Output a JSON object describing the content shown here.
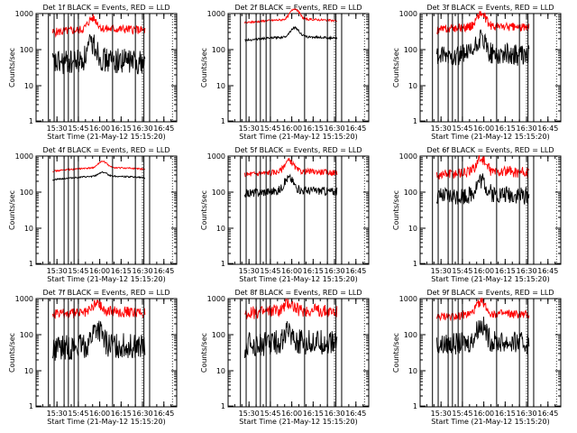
{
  "chart_data": [
    {
      "type": "line",
      "title": "Det 1f BLACK = Events, RED = LLD",
      "xlabel": "Start Time (21-May-12 15:15:20)",
      "ylabel": "Counts/sec",
      "yscale": "log",
      "ylim": [
        1,
        1000
      ],
      "y_ticks": [
        "1",
        "10",
        "100",
        "1000"
      ],
      "x_ticks": [
        "15:30",
        "15:45",
        "16:00",
        "16:15",
        "16:30",
        "16:45"
      ],
      "x_range": [
        "15:15:20",
        "16:54"
      ],
      "grid": false,
      "series": [
        {
          "color": "#ff0000",
          "level": 300,
          "bump_at": "15:55",
          "bump": 2.0,
          "noise": 0.12
        },
        {
          "color": "#000000",
          "level": 40,
          "bump_at": "15:55",
          "bump": 3.0,
          "noise": 0.35
        }
      ],
      "marker_times": [
        "15:24",
        "15:28",
        "15:35",
        "15:38",
        "15:42",
        "15:45",
        "16:09",
        "16:25",
        "16:31",
        "16:35"
      ],
      "dotted_times": [
        "16:30",
        "16:51"
      ]
    },
    {
      "type": "line",
      "title": "Det 2f BLACK = Events, RED = LLD",
      "xlabel": "Start Time (21-May-12 15:15:20)",
      "ylabel": "Counts/sec",
      "yscale": "log",
      "ylim": [
        1,
        1000
      ],
      "y_ticks": [
        "1",
        "10",
        "100",
        "1000"
      ],
      "x_ticks": [
        "15:30",
        "15:45",
        "16:00",
        "16:15",
        "16:30",
        "16:45"
      ],
      "x_range": [
        "15:15:20",
        "16:54"
      ],
      "grid": false,
      "series": [
        {
          "color": "#ff0000",
          "level": 550,
          "bump_at": "16:02",
          "bump": 2.0,
          "noise": 0.03
        },
        {
          "color": "#000000",
          "level": 180,
          "bump_at": "16:02",
          "bump": 1.8,
          "noise": 0.03
        }
      ],
      "marker_times": [
        "15:24",
        "15:28",
        "15:35",
        "15:38",
        "15:42",
        "15:45",
        "16:09",
        "16:25",
        "16:31",
        "16:35"
      ],
      "dotted_times": [
        "16:30",
        "16:51"
      ]
    },
    {
      "type": "line",
      "title": "Det 3f BLACK = Events, RED = LLD",
      "xlabel": "Start Time (21-May-12 15:15:20)",
      "ylabel": "Counts/sec",
      "yscale": "log",
      "ylim": [
        1,
        1000
      ],
      "y_ticks": [
        "1",
        "10",
        "100",
        "1000"
      ],
      "x_ticks": [
        "15:30",
        "15:45",
        "16:00",
        "16:15",
        "16:30",
        "16:45"
      ],
      "x_range": [
        "15:15:20",
        "16:54"
      ],
      "grid": false,
      "series": [
        {
          "color": "#ff0000",
          "level": 350,
          "bump_at": "15:58",
          "bump": 2.3,
          "noise": 0.12
        },
        {
          "color": "#000000",
          "level": 60,
          "bump_at": "15:58",
          "bump": 2.5,
          "noise": 0.3
        }
      ],
      "marker_times": [
        "15:24",
        "15:28",
        "15:35",
        "15:38",
        "15:42",
        "15:45",
        "16:09",
        "16:25",
        "16:31",
        "16:35"
      ],
      "dotted_times": [
        "16:30",
        "16:51"
      ]
    },
    {
      "type": "line",
      "title": "Det 4f BLACK = Events, RED = LLD",
      "xlabel": "Start Time (21-May-12 15:15:20)",
      "ylabel": "Counts/sec",
      "yscale": "log",
      "ylim": [
        1,
        1000
      ],
      "y_ticks": [
        "1",
        "10",
        "100",
        "1000"
      ],
      "x_ticks": [
        "15:30",
        "15:45",
        "16:00",
        "16:15",
        "16:30",
        "16:45"
      ],
      "x_range": [
        "15:15:20",
        "16:54"
      ],
      "grid": false,
      "series": [
        {
          "color": "#ff0000",
          "level": 380,
          "bump_at": "16:02",
          "bump": 1.5,
          "noise": 0.02
        },
        {
          "color": "#000000",
          "level": 220,
          "bump_at": "16:02",
          "bump": 1.3,
          "noise": 0.02
        }
      ],
      "marker_times": [
        "15:24",
        "15:28",
        "15:35",
        "15:38",
        "15:42",
        "15:45",
        "16:09",
        "16:25",
        "16:31",
        "16:35"
      ],
      "dotted_times": [
        "16:30",
        "16:51"
      ]
    },
    {
      "type": "line",
      "title": "Det 5f BLACK = Events, RED = LLD",
      "xlabel": "Start Time (21-May-12 15:15:20)",
      "ylabel": "Counts/sec",
      "yscale": "log",
      "ylim": [
        1,
        1000
      ],
      "y_ticks": [
        "1",
        "10",
        "100",
        "1000"
      ],
      "x_ticks": [
        "15:30",
        "15:45",
        "16:00",
        "16:15",
        "16:30",
        "16:45"
      ],
      "x_range": [
        "15:15:20",
        "16:54"
      ],
      "grid": false,
      "series": [
        {
          "color": "#ff0000",
          "level": 300,
          "bump_at": "15:58",
          "bump": 2.0,
          "noise": 0.08
        },
        {
          "color": "#000000",
          "level": 90,
          "bump_at": "15:58",
          "bump": 2.2,
          "noise": 0.12
        }
      ],
      "marker_times": [
        "15:24",
        "15:28",
        "15:35",
        "15:38",
        "15:42",
        "15:45",
        "16:09",
        "16:25",
        "16:31",
        "16:35"
      ],
      "dotted_times": [
        "16:30",
        "16:51"
      ]
    },
    {
      "type": "line",
      "title": "Det 6f BLACK = Events, RED = LLD",
      "xlabel": "Start Time (21-May-12 15:15:20)",
      "ylabel": "Counts/sec",
      "yscale": "log",
      "ylim": [
        1,
        1000
      ],
      "y_ticks": [
        "1",
        "10",
        "100",
        "1000"
      ],
      "x_ticks": [
        "15:30",
        "15:45",
        "16:00",
        "16:15",
        "16:30",
        "16:45"
      ],
      "x_range": [
        "15:15:20",
        "16:54"
      ],
      "grid": false,
      "series": [
        {
          "color": "#ff0000",
          "level": 300,
          "bump_at": "15:58",
          "bump": 2.3,
          "noise": 0.15
        },
        {
          "color": "#000000",
          "level": 70,
          "bump_at": "15:58",
          "bump": 2.5,
          "noise": 0.25
        }
      ],
      "marker_times": [
        "15:24",
        "15:28",
        "15:35",
        "15:38",
        "15:42",
        "15:45",
        "16:09",
        "16:25",
        "16:31",
        "16:35"
      ],
      "dotted_times": [
        "16:30",
        "16:51"
      ]
    },
    {
      "type": "line",
      "title": "Det 7f BLACK = Events, RED = LLD",
      "xlabel": "Start Time (21-May-12 15:15:20)",
      "ylabel": "Counts/sec",
      "yscale": "log",
      "ylim": [
        1,
        1000
      ],
      "y_ticks": [
        "1",
        "10",
        "100",
        "1000"
      ],
      "x_ticks": [
        "15:30",
        "15:45",
        "16:00",
        "16:15",
        "16:30",
        "16:45"
      ],
      "x_range": [
        "15:15:20",
        "16:54"
      ],
      "grid": false,
      "series": [
        {
          "color": "#ff0000",
          "level": 350,
          "bump_at": "15:58",
          "bump": 1.8,
          "noise": 0.15
        },
        {
          "color": "#000000",
          "level": 40,
          "bump_at": "15:58",
          "bump": 3.0,
          "noise": 0.35
        }
      ],
      "marker_times": [
        "15:24",
        "15:28",
        "15:35",
        "15:38",
        "15:42",
        "15:45",
        "16:09",
        "16:25",
        "16:31",
        "16:35"
      ],
      "dotted_times": [
        "16:30",
        "16:51"
      ]
    },
    {
      "type": "line",
      "title": "Det 8f BLACK = Events, RED = LLD",
      "xlabel": "Start Time (21-May-12 15:15:20)",
      "ylabel": "Counts/sec",
      "yscale": "log",
      "ylim": [
        1,
        1000
      ],
      "y_ticks": [
        "1",
        "10",
        "100",
        "1000"
      ],
      "x_ticks": [
        "15:30",
        "15:45",
        "16:00",
        "16:15",
        "16:30",
        "16:45"
      ],
      "x_range": [
        "15:15:20",
        "16:54"
      ],
      "grid": false,
      "series": [
        {
          "color": "#ff0000",
          "level": 380,
          "bump_at": "15:58",
          "bump": 1.6,
          "noise": 0.18
        },
        {
          "color": "#000000",
          "level": 50,
          "bump_at": "15:58",
          "bump": 2.0,
          "noise": 0.35
        }
      ],
      "marker_times": [
        "15:24",
        "15:28",
        "15:35",
        "15:38",
        "15:42",
        "15:45",
        "16:09",
        "16:25",
        "16:31",
        "16:35"
      ],
      "dotted_times": [
        "16:30",
        "16:51"
      ]
    },
    {
      "type": "line",
      "title": "Det 9f BLACK = Events, RED = LLD",
      "xlabel": "Start Time (21-May-12 15:15:20)",
      "ylabel": "Counts/sec",
      "yscale": "log",
      "ylim": [
        1,
        1000
      ],
      "y_ticks": [
        "1",
        "10",
        "100",
        "1000"
      ],
      "x_ticks": [
        "15:30",
        "15:45",
        "16:00",
        "16:15",
        "16:30",
        "16:45"
      ],
      "x_range": [
        "15:15:20",
        "16:54"
      ],
      "grid": false,
      "series": [
        {
          "color": "#ff0000",
          "level": 300,
          "bump_at": "15:58",
          "bump": 2.2,
          "noise": 0.12
        },
        {
          "color": "#000000",
          "level": 50,
          "bump_at": "15:58",
          "bump": 3.0,
          "noise": 0.3
        }
      ],
      "marker_times": [
        "15:24",
        "15:28",
        "15:35",
        "15:38",
        "15:42",
        "15:45",
        "16:09",
        "16:25",
        "16:31",
        "16:35"
      ],
      "dotted_times": [
        "16:30",
        "16:51"
      ]
    }
  ]
}
